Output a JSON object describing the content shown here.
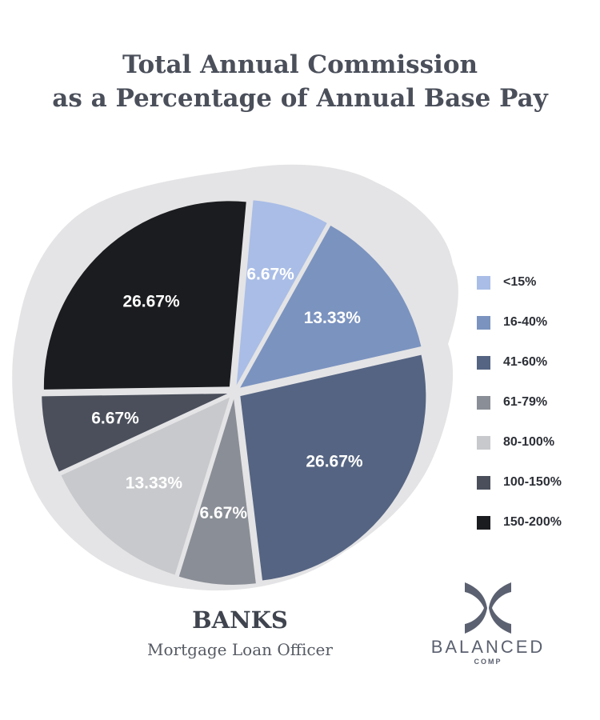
{
  "chart_data": {
    "type": "pie",
    "title_line1": "Total Annual Commission",
    "title_line2": "as a Percentage of Annual Base Pay",
    "slices": [
      {
        "label": "<15%",
        "value": 6.67,
        "display": "6.67%",
        "color": "#a9bde6",
        "text_color": "#ffffff"
      },
      {
        "label": "16-40%",
        "value": 13.33,
        "display": "13.33%",
        "color": "#7b93bf",
        "text_color": "#ffffff"
      },
      {
        "label": "41-60%",
        "value": 26.67,
        "display": "26.67%",
        "color": "#556482",
        "text_color": "#ffffff"
      },
      {
        "label": "61-79%",
        "value": 6.67,
        "display": "6.67%",
        "color": "#8a8e96",
        "text_color": "#ffffff"
      },
      {
        "label": "80-100%",
        "value": 13.33,
        "display": "13.33%",
        "color": "#c8c9cc",
        "text_color": "#ffffff"
      },
      {
        "label": "100-150%",
        "value": 6.67,
        "display": "6.67%",
        "color": "#4a4f5b",
        "text_color": "#ffffff"
      },
      {
        "label": "150-200%",
        "value": 26.67,
        "display": "26.67%",
        "color": "#1b1c1f",
        "text_color": "#ffffff"
      }
    ],
    "legend_position": "right"
  },
  "footer": {
    "title": "BANKS",
    "subtitle": "Mortgage Loan Officer"
  },
  "logo": {
    "word": "BALANCED",
    "sub": "COMP",
    "icon": "balanced-comp-logo-icon",
    "color": "#5b6170"
  }
}
